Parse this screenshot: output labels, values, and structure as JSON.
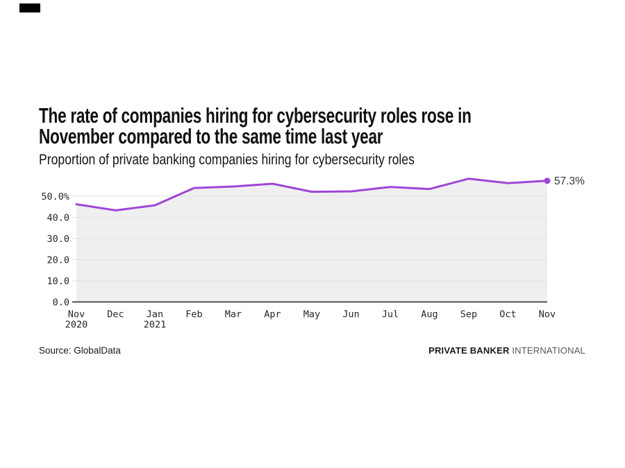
{
  "header": {
    "badge_color": "#000000",
    "title_line1": "The rate of companies hiring for cybersecurity roles rose in",
    "title_line2": "November compared to the same time last year",
    "subtitle": "Proportion of private banking companies hiring for cybersecurity roles"
  },
  "chart_data": {
    "type": "line",
    "title": "The rate of companies hiring for cybersecurity roles rose in November compared to the same time last year",
    "subtitle": "Proportion of private banking companies hiring for cybersecurity roles",
    "categories": [
      "Nov",
      "Dec",
      "Jan",
      "Feb",
      "Mar",
      "Apr",
      "May",
      "Jun",
      "Jul",
      "Aug",
      "Sep",
      "Oct",
      "Nov"
    ],
    "category_years": [
      "2020",
      "",
      "2021",
      "",
      "",
      "",
      "",
      "",
      "",
      "",
      "",
      "",
      ""
    ],
    "values": [
      46.2,
      43.3,
      45.7,
      53.9,
      54.6,
      55.9,
      52.1,
      52.3,
      54.4,
      53.4,
      58.3,
      56.2,
      57.3
    ],
    "end_label": "57.3%",
    "yticks": [
      {
        "value": 50,
        "label": "50.0%"
      },
      {
        "value": 40,
        "label": "40.0"
      },
      {
        "value": 30,
        "label": "30.0"
      },
      {
        "value": 20,
        "label": "20.0"
      },
      {
        "value": 10,
        "label": "10.0"
      },
      {
        "value": 0,
        "label": "0.0"
      }
    ],
    "ylim": [
      0,
      60
    ],
    "grid": true,
    "legend": "none",
    "line_color": "#9e46d7",
    "area_color": "#efefef",
    "grid_color": "#e2e2e2",
    "axis_color": "#3a3a3a",
    "tick_color": "#262626"
  },
  "footer": {
    "source_label": "Source:",
    "source_value": "GlobalData",
    "brand_bold": "PRIVATE BANKER",
    "brand_light": "INTERNATIONAL"
  }
}
